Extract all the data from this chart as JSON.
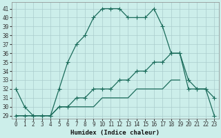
{
  "xlabel": "Humidex (Indice chaleur)",
  "background_color": "#cceeea",
  "grid_color": "#aacccc",
  "line_color": "#1a6b5a",
  "x_values": [
    0,
    1,
    2,
    3,
    4,
    5,
    6,
    7,
    8,
    9,
    10,
    11,
    12,
    13,
    14,
    15,
    16,
    17,
    18,
    19,
    20,
    21,
    22,
    23
  ],
  "series1": [
    32,
    30,
    29,
    29,
    29,
    32,
    35,
    37,
    38,
    40,
    41,
    41,
    41,
    40,
    40,
    40,
    41,
    39,
    36,
    36,
    32,
    32,
    32,
    31
  ],
  "series2": [
    29,
    29,
    29,
    29,
    29,
    30,
    30,
    31,
    31,
    32,
    32,
    32,
    33,
    33,
    34,
    34,
    35,
    35,
    36,
    36,
    33,
    32,
    32,
    29
  ],
  "series3": [
    29,
    29,
    29,
    29,
    29,
    30,
    30,
    30,
    30,
    30,
    31,
    31,
    31,
    31,
    32,
    32,
    32,
    32,
    33,
    33,
    null,
    null,
    null,
    null
  ],
  "ylim_min": 29,
  "ylim_max": 42,
  "xlim_min": -0.5,
  "xlim_max": 23.5,
  "yticks": [
    29,
    30,
    31,
    32,
    33,
    34,
    35,
    36,
    37,
    38,
    39,
    40,
    41
  ],
  "xticks": [
    0,
    1,
    2,
    3,
    4,
    5,
    6,
    7,
    8,
    9,
    10,
    11,
    12,
    13,
    14,
    15,
    16,
    17,
    18,
    19,
    20,
    21,
    22,
    23
  ],
  "marker_size": 2.0,
  "line_width": 0.9,
  "tick_fontsize": 5.5,
  "xlabel_fontsize": 6.5
}
